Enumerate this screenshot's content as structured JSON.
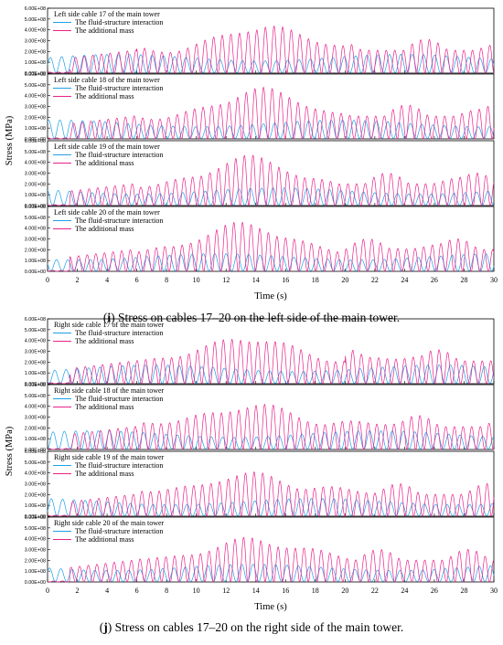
{
  "figures": [
    {
      "caption_letter": "i",
      "caption_text": " Stress on cables 17–20 on the left side of the main tower.",
      "ylabel": "Stress (MPa)",
      "xlabel": "Time (s)",
      "x_ticks": [
        "0",
        "2",
        "4",
        "6",
        "8",
        "10",
        "12",
        "14",
        "16",
        "18",
        "20",
        "22",
        "24",
        "26",
        "28",
        "30"
      ],
      "y_ticks": [
        "0.00E+00",
        "1.00E+08",
        "2.00E+08",
        "3.00E+08",
        "4.00E+08",
        "5.00E+08",
        "6.00E+08"
      ]
    },
    {
      "caption_letter": "j",
      "caption_text": " Stress on cables 17–20 on the right side of the main tower.",
      "ylabel": "Stress (MPa)",
      "xlabel": "Time (s)",
      "x_ticks": [
        "0",
        "2",
        "4",
        "6",
        "8",
        "10",
        "12",
        "14",
        "16",
        "18",
        "20",
        "22",
        "24",
        "26",
        "28",
        "30"
      ],
      "y_ticks": [
        "0.00E+00",
        "1.00E+08",
        "2.00E+08",
        "3.00E+08",
        "4.00E+08",
        "5.00E+08",
        "6.00E+08"
      ]
    }
  ],
  "chart_data": [
    {
      "type": "line",
      "title": "Left side cable 17 of the main tower",
      "xlim": [
        0,
        30
      ],
      "ylim": [
        0,
        600000000
      ],
      "grid": false,
      "legend": "top-left",
      "series": [
        {
          "name": "The fluid-structure interaction",
          "color": "#1ea0e6",
          "amplitude_approx": 170000000,
          "period_s": 0.76
        },
        {
          "name": "The additional mass",
          "color": "#e8228c",
          "peak_approx": 470000000,
          "peak_time_s": 14,
          "period_s": 0.58
        }
      ]
    },
    {
      "type": "line",
      "title": "Left side cable 18 of the main tower",
      "xlim": [
        0,
        30
      ],
      "ylim": [
        0,
        600000000
      ],
      "grid": false,
      "legend": "top-left",
      "series": [
        {
          "name": "The fluid-structure interaction",
          "color": "#1ea0e6",
          "amplitude_approx": 170000000,
          "period_s": 0.76
        },
        {
          "name": "The additional mass",
          "color": "#e8228c",
          "peak_approx": 470000000,
          "peak_time_s": 14,
          "period_s": 0.58
        }
      ]
    },
    {
      "type": "line",
      "title": "Left side cable 19 of the main tower",
      "xlim": [
        0,
        30
      ],
      "ylim": [
        0,
        600000000
      ],
      "grid": false,
      "legend": "top-left",
      "series": [
        {
          "name": "The fluid-structure interaction",
          "color": "#1ea0e6",
          "amplitude_approx": 160000000,
          "period_s": 0.76
        },
        {
          "name": "The additional mass",
          "color": "#e8228c",
          "peak_approx": 450000000,
          "peak_time_s": 13.5,
          "period_s": 0.58
        }
      ]
    },
    {
      "type": "line",
      "title": "Left side cable 20 of the main tower",
      "xlim": [
        0,
        30
      ],
      "ylim": [
        0,
        600000000
      ],
      "grid": false,
      "legend": "top-left",
      "series": [
        {
          "name": "The fluid-structure interaction",
          "color": "#1ea0e6",
          "amplitude_approx": 160000000,
          "period_s": 0.76
        },
        {
          "name": "The additional mass",
          "color": "#e8228c",
          "peak_approx": 450000000,
          "peak_time_s": 13.5,
          "period_s": 0.58
        }
      ]
    },
    {
      "type": "line",
      "title": "Right side cable 17 of the main tower",
      "xlim": [
        0,
        30
      ],
      "ylim": [
        0,
        600000000
      ],
      "grid": false,
      "legend": "top-left",
      "series": [
        {
          "name": "The fluid-structure interaction",
          "color": "#1ea0e6",
          "amplitude_approx": 170000000,
          "period_s": 0.76
        },
        {
          "name": "The additional mass",
          "color": "#e8228c",
          "peak_approx": 470000000,
          "peak_time_s": 14,
          "period_s": 0.58
        }
      ]
    },
    {
      "type": "line",
      "title": "Right side cable 18 of the main tower",
      "xlim": [
        0,
        30
      ],
      "ylim": [
        0,
        600000000
      ],
      "grid": false,
      "legend": "top-left",
      "series": [
        {
          "name": "The fluid-structure interaction",
          "color": "#1ea0e6",
          "amplitude_approx": 170000000,
          "period_s": 0.76
        },
        {
          "name": "The additional mass",
          "color": "#e8228c",
          "peak_approx": 470000000,
          "peak_time_s": 14,
          "period_s": 0.58
        }
      ]
    },
    {
      "type": "line",
      "title": "Right side cable 19 of the main tower",
      "xlim": [
        0,
        30
      ],
      "ylim": [
        0,
        600000000
      ],
      "grid": false,
      "legend": "top-left",
      "series": [
        {
          "name": "The fluid-structure interaction",
          "color": "#1ea0e6",
          "amplitude_approx": 160000000,
          "period_s": 0.76
        },
        {
          "name": "The additional mass",
          "color": "#e8228c",
          "peak_approx": 450000000,
          "peak_time_s": 13.5,
          "period_s": 0.58
        }
      ]
    },
    {
      "type": "line",
      "title": "Right side cable 20 of the main tower",
      "xlim": [
        0,
        30
      ],
      "ylim": [
        0,
        600000000
      ],
      "grid": false,
      "legend": "top-left",
      "series": [
        {
          "name": "The fluid-structure interaction",
          "color": "#1ea0e6",
          "amplitude_approx": 160000000,
          "period_s": 0.76
        },
        {
          "name": "The additional mass",
          "color": "#e8228c",
          "peak_approx": 450000000,
          "peak_time_s": 13.5,
          "period_s": 0.58
        }
      ]
    }
  ]
}
